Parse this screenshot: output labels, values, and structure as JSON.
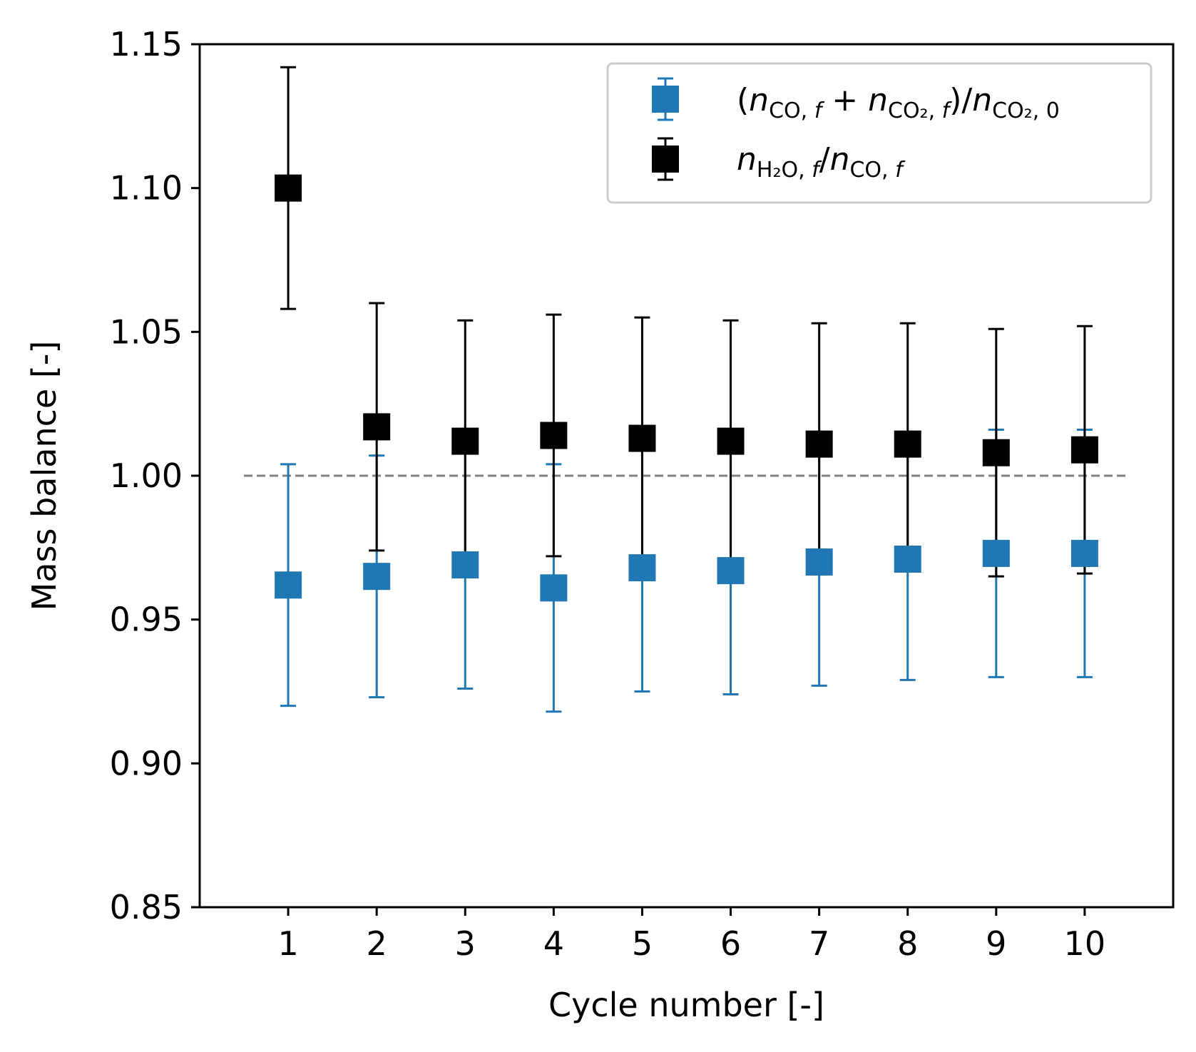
{
  "chart_data": {
    "type": "scatter",
    "xlabel": "Cycle number [-]",
    "ylabel": "Mass balance [-]",
    "xlim": [
      0,
      11
    ],
    "ylim": [
      0.85,
      1.15
    ],
    "x": [
      1,
      2,
      3,
      4,
      5,
      6,
      7,
      8,
      9,
      10
    ],
    "x_ticks": [
      "1",
      "2",
      "3",
      "4",
      "5",
      "6",
      "7",
      "8",
      "9",
      "10"
    ],
    "y_ticks": [
      "0.85",
      "0.90",
      "0.95",
      "1.00",
      "1.05",
      "1.10",
      "1.15"
    ],
    "reference_line": {
      "y": 1.0,
      "style": "dashed",
      "color": "#808080"
    },
    "grid": false,
    "legend_position": "top-right",
    "series": [
      {
        "name": "(nCO,f + nCO2,f)/nCO2,0",
        "color": "#1f77b4",
        "marker": "square",
        "values": [
          0.962,
          0.965,
          0.969,
          0.961,
          0.968,
          0.967,
          0.97,
          0.971,
          0.973,
          0.973
        ],
        "errors": [
          0.042,
          0.042,
          0.043,
          0.043,
          0.043,
          0.043,
          0.043,
          0.042,
          0.043,
          0.043
        ]
      },
      {
        "name": "nH2O,f/nCO,f",
        "color": "#000000",
        "marker": "square",
        "values": [
          1.1,
          1.017,
          1.012,
          1.014,
          1.013,
          1.012,
          1.011,
          1.011,
          1.008,
          1.009
        ],
        "errors": [
          0.042,
          0.043,
          0.042,
          0.042,
          0.042,
          0.042,
          0.042,
          0.042,
          0.043,
          0.043
        ]
      }
    ]
  }
}
